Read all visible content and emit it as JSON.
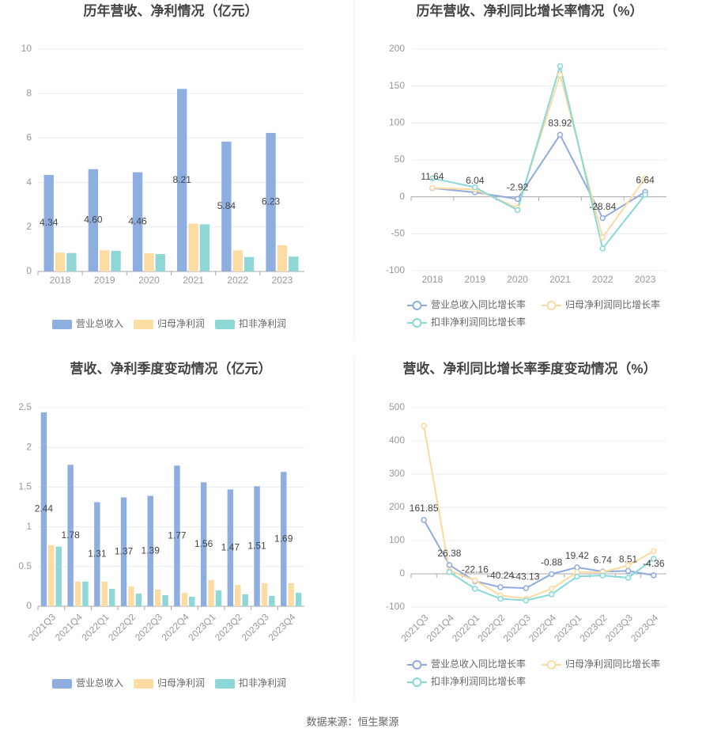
{
  "chart_data": [
    {
      "type": "bar",
      "title": "历年营收、净利情况（亿元）",
      "categories": [
        "2018",
        "2019",
        "2020",
        "2021",
        "2022",
        "2023"
      ],
      "series": [
        {
          "name": "营业总收入",
          "color": "#8eaee0",
          "values": [
            4.34,
            4.6,
            4.46,
            8.21,
            5.84,
            6.23
          ],
          "value_labels": [
            "4.34",
            "4.60",
            "4.46",
            "8.21",
            "5.84",
            "6.23"
          ]
        },
        {
          "name": "归母净利润",
          "color": "#fddca3",
          "values": [
            0.85,
            0.95,
            0.82,
            2.15,
            0.95,
            1.18
          ]
        },
        {
          "name": "扣非净利润",
          "color": "#8fd7d7",
          "values": [
            0.83,
            0.93,
            0.78,
            2.12,
            0.65,
            0.67
          ]
        }
      ],
      "ylim": [
        0,
        10
      ],
      "yticks": [
        0,
        2,
        4,
        6,
        8,
        10
      ],
      "grid": true
    },
    {
      "type": "line",
      "title": "历年营收、净利同比增长率情况（%）",
      "categories": [
        "2018",
        "2019",
        "2020",
        "2021",
        "2022",
        "2023"
      ],
      "series": [
        {
          "name": "营业总收入同比增长率",
          "color": "#8eaae0",
          "values": [
            11.64,
            6.04,
            -2.92,
            83.92,
            -28.84,
            6.64
          ],
          "labels": true
        },
        {
          "name": "归母净利润同比增长率",
          "color": "#fdd9a0",
          "values": [
            12,
            10,
            -15,
            165,
            -55,
            25
          ]
        },
        {
          "name": "扣非净利润同比增长率",
          "color": "#86d9d9",
          "values": [
            25,
            13,
            -18,
            177,
            -70,
            3
          ]
        }
      ],
      "ylim": [
        -100,
        200
      ],
      "yticks": [
        -100,
        -50,
        0,
        50,
        100,
        150,
        200
      ],
      "grid": true
    },
    {
      "type": "bar",
      "title": "营收、净利季度变动情况（亿元）",
      "categories": [
        "2021Q3",
        "2021Q4",
        "2022Q1",
        "2022Q2",
        "2022Q3",
        "2022Q4",
        "2023Q1",
        "2023Q2",
        "2023Q3",
        "2023Q4"
      ],
      "series": [
        {
          "name": "营业总收入",
          "color": "#8eaee0",
          "values": [
            2.44,
            1.78,
            1.31,
            1.37,
            1.39,
            1.77,
            1.56,
            1.47,
            1.51,
            1.69
          ]
        },
        {
          "name": "归母净利润",
          "color": "#fddca3",
          "values": [
            0.77,
            0.31,
            0.31,
            0.25,
            0.21,
            0.17,
            0.33,
            0.27,
            0.29,
            0.29
          ]
        },
        {
          "name": "扣非净利润",
          "color": "#8fd7d7",
          "values": [
            0.75,
            0.31,
            0.22,
            0.16,
            0.14,
            0.12,
            0.2,
            0.15,
            0.13,
            0.17
          ]
        }
      ],
      "ylim": [
        0,
        2.5
      ],
      "yticks": [
        0,
        0.5,
        1,
        1.5,
        2,
        2.5
      ],
      "grid": true
    },
    {
      "type": "line",
      "title": "营收、净利同比增长率季度变动情况（%）",
      "categories": [
        "2021Q3",
        "2021Q4",
        "2022Q1",
        "2022Q2",
        "2022Q3",
        "2022Q4",
        "2023Q1",
        "2023Q2",
        "2023Q3",
        "2023Q4"
      ],
      "series": [
        {
          "name": "营业总收入同比增长率",
          "color": "#8eaae0",
          "values": [
            161.85,
            26.38,
            -22.16,
            -40.24,
            -43.13,
            -0.88,
            19.42,
            6.74,
            8.51,
            -4.36
          ],
          "labels": true
        },
        {
          "name": "归母净利润同比增长率",
          "color": "#fdd9a0",
          "values": [
            445,
            10,
            -20,
            -65,
            -75,
            -45,
            5,
            5,
            25,
            68
          ]
        },
        {
          "name": "扣非净利润同比增长率",
          "color": "#86d9d9",
          "values": [
            null,
            5,
            -45,
            -75,
            -80,
            -62,
            -8,
            -5,
            -12,
            45
          ]
        }
      ],
      "ylim": [
        -100,
        500
      ],
      "yticks": [
        -100,
        0,
        100,
        200,
        300,
        400,
        500
      ],
      "grid": true
    }
  ],
  "source": "数据来源：恒生聚源"
}
